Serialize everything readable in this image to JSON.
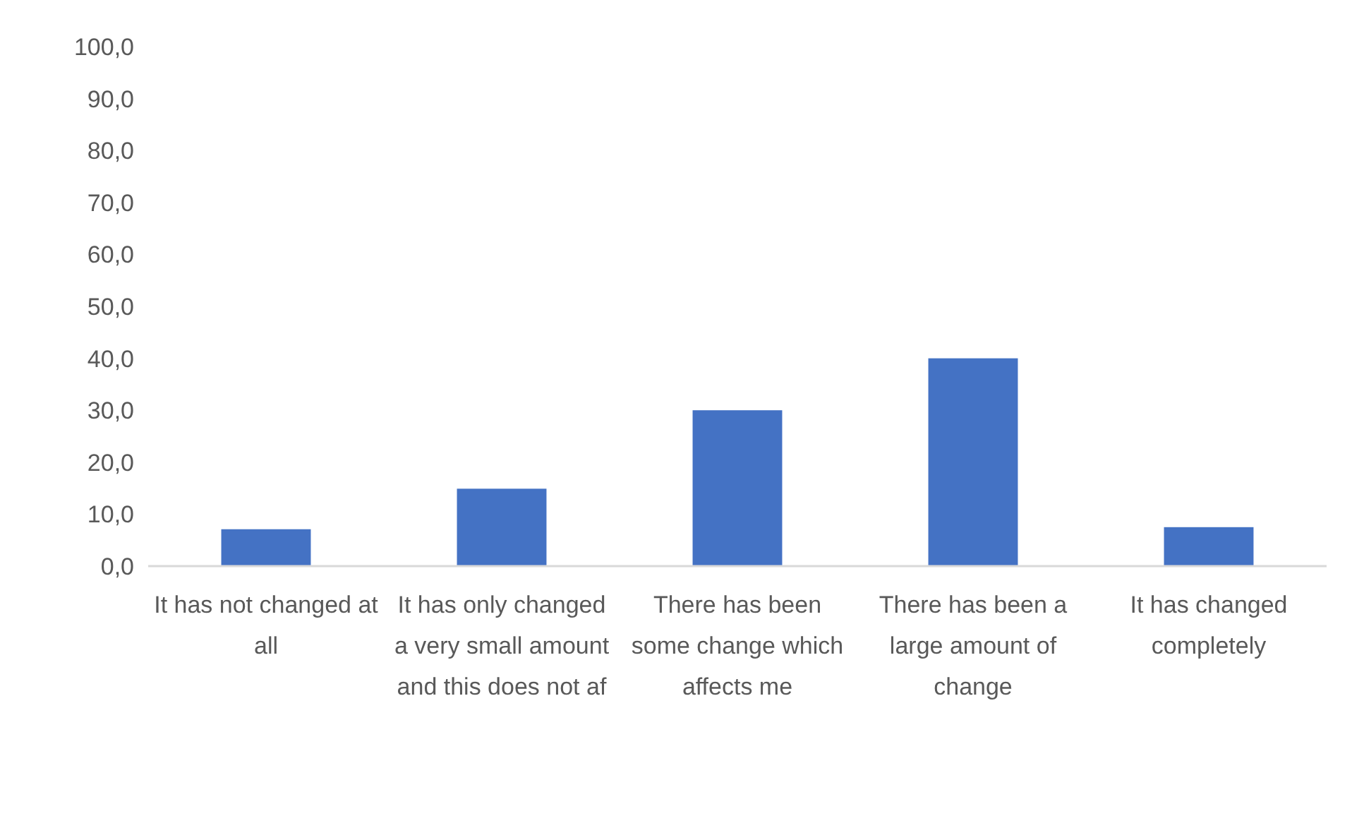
{
  "chart_data": {
    "type": "bar",
    "categories": [
      "It has not changed at all",
      "It has only changed a very small amount and this does not af",
      "There has been some change which affects me",
      "There has been a large amount of change",
      "It has changed completely"
    ],
    "values": [
      7.1,
      14.9,
      30.0,
      40.0,
      7.5
    ],
    "color": "#4472c4",
    "ylim": [
      0,
      100
    ],
    "yticks": [
      {
        "value": 0,
        "label": "0,0"
      },
      {
        "value": 10,
        "label": "10,0"
      },
      {
        "value": 20,
        "label": "20,0"
      },
      {
        "value": 30,
        "label": "30,0"
      },
      {
        "value": 40,
        "label": "40,0"
      },
      {
        "value": 50,
        "label": "50,0"
      },
      {
        "value": 60,
        "label": "60,0"
      },
      {
        "value": 70,
        "label": "70,0"
      },
      {
        "value": 80,
        "label": "80,0"
      },
      {
        "value": 90,
        "label": "90,0"
      },
      {
        "value": 100,
        "label": "100,0"
      }
    ],
    "grid": false
  }
}
